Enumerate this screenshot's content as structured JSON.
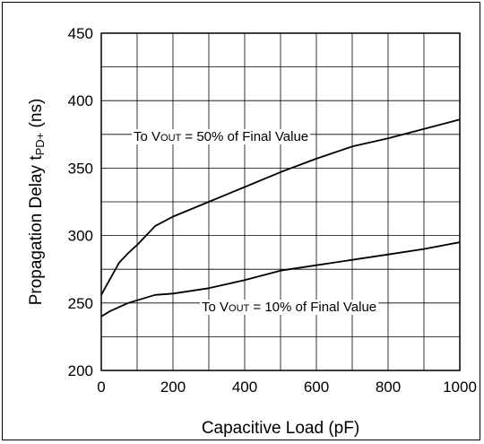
{
  "chart_data": {
    "type": "line",
    "xlabel": "Capacitive Load (pF)",
    "ylabel": {
      "pre": "Propagation Delay t",
      "sub": "PD+",
      "post": " (ns)"
    },
    "xlim": [
      0,
      1000
    ],
    "ylim": [
      200,
      450
    ],
    "xticks": [
      0,
      200,
      400,
      600,
      800,
      1000
    ],
    "yticks": [
      200,
      250,
      300,
      350,
      400,
      450
    ],
    "grid": true,
    "series": [
      {
        "name": "To VOUT = 50% of Final Value",
        "x": [
          0,
          25,
          50,
          75,
          100,
          150,
          200,
          300,
          400,
          500,
          600,
          700,
          800,
          900,
          1000
        ],
        "y": [
          256,
          268,
          280,
          287,
          293,
          307,
          314,
          325,
          336,
          347,
          357,
          366,
          372,
          379,
          386
        ]
      },
      {
        "name": "To VOUT = 10% of Final Value",
        "x": [
          0,
          25,
          50,
          75,
          100,
          150,
          200,
          300,
          400,
          500,
          600,
          700,
          800,
          900,
          1000
        ],
        "y": [
          240,
          244,
          247,
          250,
          252,
          256,
          257,
          261,
          267,
          274,
          278,
          282,
          286,
          290,
          295
        ]
      }
    ],
    "annotations": [
      {
        "pre": "To V",
        "sub": "OUT",
        "post": " = 50% of Final Value"
      },
      {
        "pre": "To V",
        "sub": "OUT",
        "post": " = 10% of Final Value"
      }
    ]
  }
}
